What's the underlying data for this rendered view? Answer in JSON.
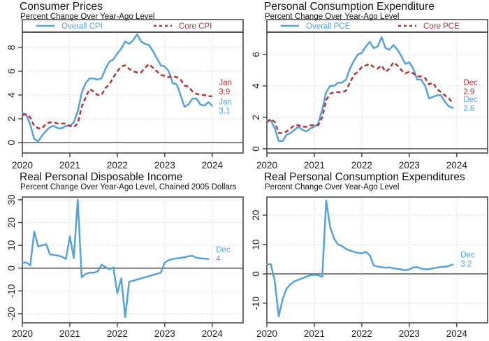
{
  "page": {
    "background": "#ffffff"
  },
  "colors": {
    "overall_blue": "#57A2D9",
    "core_red": "#AF3634",
    "axis": "#3d3d3d",
    "grid": "#c3c3c3"
  },
  "chart_data": [
    {
      "type": "line",
      "title": "Consumer Prices",
      "subtitle": "Percent Change Over Year-Ago Level",
      "layout": "top",
      "xlim": [
        2020,
        2024.65
      ],
      "x_ticks": [
        2020,
        2021,
        2022,
        2023,
        2024
      ],
      "ylim": [
        -0.88,
        9.29
      ],
      "y_ticks": [
        0,
        2,
        4,
        6,
        8
      ],
      "grid": true,
      "legend_position": "top",
      "series": [
        {
          "name": "Overall CPI",
          "color": "#57A2D9",
          "dash": false,
          "start_year": 2020,
          "values": [
            2.5,
            2.3,
            1.5,
            0.3,
            0.1,
            0.6,
            1.0,
            1.3,
            1.4,
            1.2,
            1.2,
            1.4,
            1.4,
            1.7,
            2.6,
            4.2,
            5.0,
            5.4,
            5.4,
            5.3,
            5.4,
            6.2,
            6.8,
            7.0,
            7.5,
            7.9,
            8.5,
            8.3,
            8.6,
            9.1,
            8.5,
            8.3,
            8.2,
            7.7,
            7.1,
            6.5,
            6.4,
            6.0,
            5.0,
            4.9,
            4.0,
            3.0,
            3.2,
            3.7,
            3.7,
            3.2,
            3.1,
            3.4,
            3.1
          ]
        },
        {
          "name": "Core CPI",
          "color": "#AF3634",
          "dash": true,
          "start_year": 2020,
          "values": [
            2.3,
            2.4,
            2.1,
            1.4,
            1.2,
            1.2,
            1.6,
            1.7,
            1.7,
            1.6,
            1.6,
            1.6,
            1.4,
            1.3,
            1.6,
            3.0,
            3.8,
            4.5,
            4.3,
            4.0,
            4.0,
            4.6,
            4.9,
            5.5,
            6.0,
            6.4,
            6.5,
            6.2,
            6.0,
            5.9,
            5.9,
            6.3,
            6.6,
            6.3,
            6.0,
            5.7,
            5.6,
            5.5,
            5.6,
            5.5,
            5.3,
            4.8,
            4.7,
            4.3,
            4.1,
            4.0,
            4.0,
            3.9,
            3.9
          ]
        }
      ],
      "annotations": [
        {
          "lines": [
            "Jan",
            "3.9"
          ],
          "color": "#AF3634",
          "x": 2024.14,
          "y": 5.06
        },
        {
          "lines": [
            "Jan",
            "3.1"
          ],
          "color": "#57A2D9",
          "x": 2024.14,
          "y": 3.45
        }
      ]
    },
    {
      "type": "line",
      "title": "Personal Consumption Expenditure",
      "subtitle": "Percent Change Over Year-Ago Level",
      "layout": "top",
      "xlim": [
        2020,
        2024.65
      ],
      "x_ticks": [
        2020,
        2021,
        2022,
        2023,
        2024
      ],
      "ylim": [
        -0.27,
        7.42
      ],
      "y_ticks": [
        0,
        2,
        4,
        6
      ],
      "grid": true,
      "legend_position": "top",
      "series": [
        {
          "name": "Overall PCE",
          "color": "#57A2D9",
          "dash": false,
          "start_year": 2020,
          "values": [
            1.8,
            1.8,
            1.3,
            0.5,
            0.5,
            0.9,
            1.0,
            1.2,
            1.4,
            1.2,
            1.1,
            1.3,
            1.4,
            1.6,
            2.5,
            3.6,
            4.0,
            4.0,
            4.2,
            4.2,
            4.4,
            5.1,
            5.6,
            6.0,
            6.1,
            6.5,
            6.8,
            6.4,
            6.5,
            7.1,
            6.4,
            6.3,
            6.6,
            6.3,
            5.9,
            5.4,
            5.5,
            5.1,
            4.4,
            4.4,
            4.0,
            3.2,
            3.3,
            3.4,
            3.4,
            3.0,
            2.7,
            2.6
          ]
        },
        {
          "name": "Core PCE",
          "color": "#AF3634",
          "dash": true,
          "start_year": 2020,
          "values": [
            1.7,
            1.9,
            1.7,
            1.0,
            1.0,
            1.1,
            1.3,
            1.5,
            1.5,
            1.4,
            1.4,
            1.5,
            1.5,
            1.5,
            2.0,
            3.1,
            3.5,
            3.6,
            3.6,
            3.6,
            3.7,
            4.2,
            4.7,
            4.9,
            5.2,
            5.3,
            5.4,
            5.2,
            5.1,
            5.3,
            4.9,
            5.1,
            5.5,
            5.3,
            5.0,
            4.8,
            4.9,
            4.8,
            4.6,
            4.6,
            4.5,
            4.1,
            4.2,
            3.8,
            3.6,
            3.4,
            3.2,
            2.9
          ]
        }
      ],
      "annotations": [
        {
          "lines": [
            "Dec",
            "2.9"
          ],
          "color": "#AF3634",
          "x": 2024.14,
          "y": 4.22
        },
        {
          "lines": [
            "Dec",
            "2.6"
          ],
          "color": "#57A2D9",
          "x": 2024.14,
          "y": 3.16
        }
      ]
    },
    {
      "type": "line",
      "title": "Real Personal Disposable Income",
      "subtitle": "Percent Change Over Year-Ago Level, Chained 2005 Dollars",
      "layout": "bottom",
      "xlim": [
        2020,
        2024.65
      ],
      "x_ticks": [
        2020,
        2021,
        2022,
        2023,
        2024
      ],
      "ylim": [
        -24,
        31.2
      ],
      "y_ticks": [
        -20,
        -10,
        0,
        10,
        20,
        30
      ],
      "grid": true,
      "legend_position": "none",
      "series": [
        {
          "name": "Real Personal Disposable Income",
          "color": "#57A2D9",
          "dash": false,
          "start_year": 2020,
          "values": [
            2.5,
            2.5,
            1.2,
            16.0,
            9.5,
            10.0,
            10.5,
            6.0,
            5.8,
            5.5,
            5.0,
            4.0,
            14.0,
            4.5,
            30.0,
            -4.0,
            -2.5,
            -2.0,
            -2.0,
            -1.5,
            1.5,
            0.5,
            -0.5,
            0.3,
            -11.0,
            -4.5,
            -21.5,
            -6.0,
            -5.5,
            -5.0,
            -4.5,
            -4.0,
            -3.5,
            -3.0,
            -2.5,
            -2.0,
            2.5,
            3.5,
            4.0,
            4.3,
            4.5,
            4.8,
            5.2,
            5.4,
            4.6,
            4.3,
            4.2,
            4.0
          ]
        }
      ],
      "annotations": [
        {
          "lines": [
            "Dec",
            "4"
          ],
          "color": "#57A2D9",
          "x": 2024.08,
          "y": 8.2
        }
      ]
    },
    {
      "type": "line",
      "title": "Real Personal Consumption Expenditures",
      "subtitle": "Percent Change Over Year-Ago Level",
      "layout": "bottom",
      "xlim": [
        2020,
        2024.65
      ],
      "x_ticks": [
        2020,
        2021,
        2022,
        2023,
        2024
      ],
      "ylim": [
        -16.7,
        26.2
      ],
      "y_ticks": [
        -10,
        0,
        10,
        20
      ],
      "grid": true,
      "legend_position": "none",
      "series": [
        {
          "name": "Real Personal Consumption Expenditures",
          "color": "#57A2D9",
          "dash": false,
          "start_year": 2020,
          "values": [
            3.3,
            3.3,
            -2.5,
            -14.5,
            -8.5,
            -5.0,
            -3.5,
            -2.5,
            -2.0,
            -1.5,
            -1.0,
            -0.5,
            -0.3,
            -0.5,
            -1.0,
            25.0,
            16.0,
            12.0,
            10.0,
            9.5,
            8.5,
            8.0,
            7.5,
            7.2,
            7.0,
            7.5,
            6.4,
            2.9,
            2.5,
            2.3,
            2.1,
            2.2,
            1.9,
            1.7,
            1.5,
            1.2,
            1.5,
            2.2,
            2.3,
            1.8,
            1.6,
            1.6,
            1.9,
            2.1,
            2.4,
            2.4,
            2.7,
            3.2
          ]
        }
      ],
      "annotations": [
        {
          "lines": [
            "Dec",
            "3.2"
          ],
          "color": "#57A2D9",
          "x": 2024.08,
          "y": 6.5
        }
      ]
    }
  ]
}
